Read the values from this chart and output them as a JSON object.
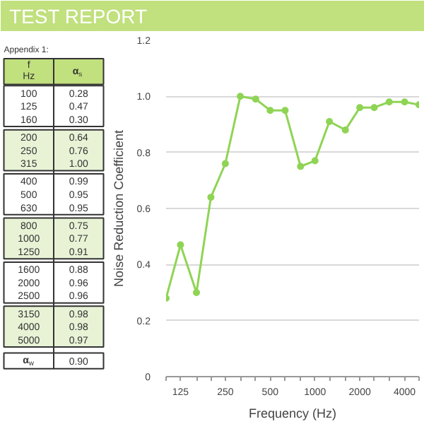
{
  "chart_data": {
    "type": "line",
    "title": "TEST REPORT",
    "xlabel": "Frequency (Hz)",
    "ylabel": "Noise Reduction Coefficient",
    "annotations": [
      "Appendix 1:",
      "f",
      "Hz",
      "α$_{s}$",
      "100",
      "0.28",
      "125",
      "0.47",
      "160",
      "0.30",
      "200",
      "0.64",
      "250",
      "0.76",
      "315",
      "1.00",
      "400",
      "0.99",
      "500",
      "0.95",
      "630",
      "0.95",
      "800",
      "0.75",
      "1000",
      "0.77",
      "1250",
      "0.91",
      "1600",
      "0.88",
      "2000",
      "0.96",
      "2500",
      "0.96",
      "3150",
      "0.98",
      "4000",
      "0.98",
      "5000",
      "0.97",
      "α$_{w}$",
      "0.90"
    ],
    "x": [
      100,
      125,
      160,
      200,
      250,
      315,
      400,
      500,
      630,
      800,
      1000,
      1250,
      1600,
      2000,
      2500,
      3150,
      4000,
      5000
    ],
    "series": [
      {
        "color": "#8fd454",
        "values": [
          0.28,
          0.47,
          0.3,
          0.64,
          0.76,
          1.0,
          0.99,
          0.95,
          0.95,
          0.75,
          0.77,
          0.91,
          0.88,
          0.96,
          0.96,
          0.98,
          0.98,
          0.97
        ]
      }
    ],
    "log": "x",
    "xlim": [
      100,
      5000
    ],
    "xticks": [
      {
        "value": 100,
        "label": null
      },
      125,
      {
        "value": 160,
        "label": null
      },
      {
        "value": 200,
        "label": null
      },
      250,
      {
        "value": 315,
        "label": null
      },
      {
        "value": 400,
        "label": null
      },
      500,
      {
        "value": 630,
        "label": null
      },
      {
        "value": 800,
        "label": null
      },
      1000,
      {
        "value": 1250,
        "label": null
      },
      {
        "value": 1600,
        "label": null
      },
      2000,
      {
        "value": 2500,
        "label": null
      },
      {
        "value": 3150,
        "label": null
      },
      4000,
      {
        "value": 5000,
        "label": null
      }
    ],
    "ylim": [
      0,
      1.2
    ],
    "yticks": [
      0,
      0.2,
      0.4,
      0.6,
      0.8,
      {
        "value": 1.0,
        "label": "1.0"
      },
      1.2
    ],
    "grid": "y",
    "marker": "circle",
    "line_style": "solid"
  }
}
